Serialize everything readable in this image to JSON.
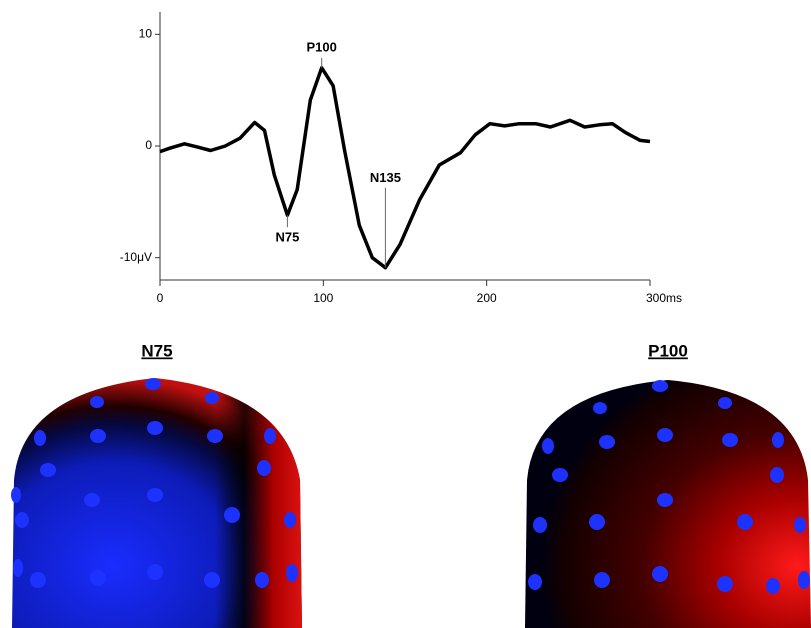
{
  "chart_data": {
    "type": "line",
    "x": [
      0,
      6,
      15,
      23,
      31,
      40,
      49,
      58,
      64,
      70,
      78,
      84,
      92,
      99,
      106,
      113,
      122,
      130,
      138,
      147,
      159,
      171,
      184,
      193,
      202,
      211,
      220,
      230,
      239,
      251,
      260,
      269,
      277,
      285,
      294,
      300
    ],
    "series": [
      {
        "color": "#000000",
        "values": [
          -0.5,
          -0.2,
          0.2,
          -0.1,
          -0.4,
          0,
          0.7,
          2.1,
          1.4,
          -2.6,
          -6.2,
          -3.9,
          4.1,
          7.0,
          5.4,
          -0.4,
          -7.1,
          -10,
          -10.9,
          -8.8,
          -4.8,
          -1.7,
          -0.6,
          1.0,
          2.0,
          1.8,
          2.0,
          2.0,
          1.7,
          2.3,
          1.7,
          1.9,
          2.0,
          1.2,
          0.5,
          0.4
        ]
      }
    ],
    "xlim": [
      0,
      300
    ],
    "ylim": [
      -12,
      12
    ],
    "xticks": [
      0,
      100,
      200,
      {
        "value": 300,
        "label": "300ms"
      }
    ],
    "yticks": [
      10,
      0,
      {
        "value": -10,
        "label": "-10μV"
      }
    ],
    "annotations": [
      {
        "text": "P100",
        "x": 99,
        "y": 7.0,
        "placement": "above"
      },
      {
        "text": "N75",
        "x": 78,
        "y": -6.2,
        "placement": "below"
      },
      {
        "text": "N135",
        "x": 138,
        "y": -10.9,
        "placement": "leader"
      }
    ]
  },
  "topomaps": [
    {
      "title": "N75"
    },
    {
      "title": "P100"
    }
  ]
}
